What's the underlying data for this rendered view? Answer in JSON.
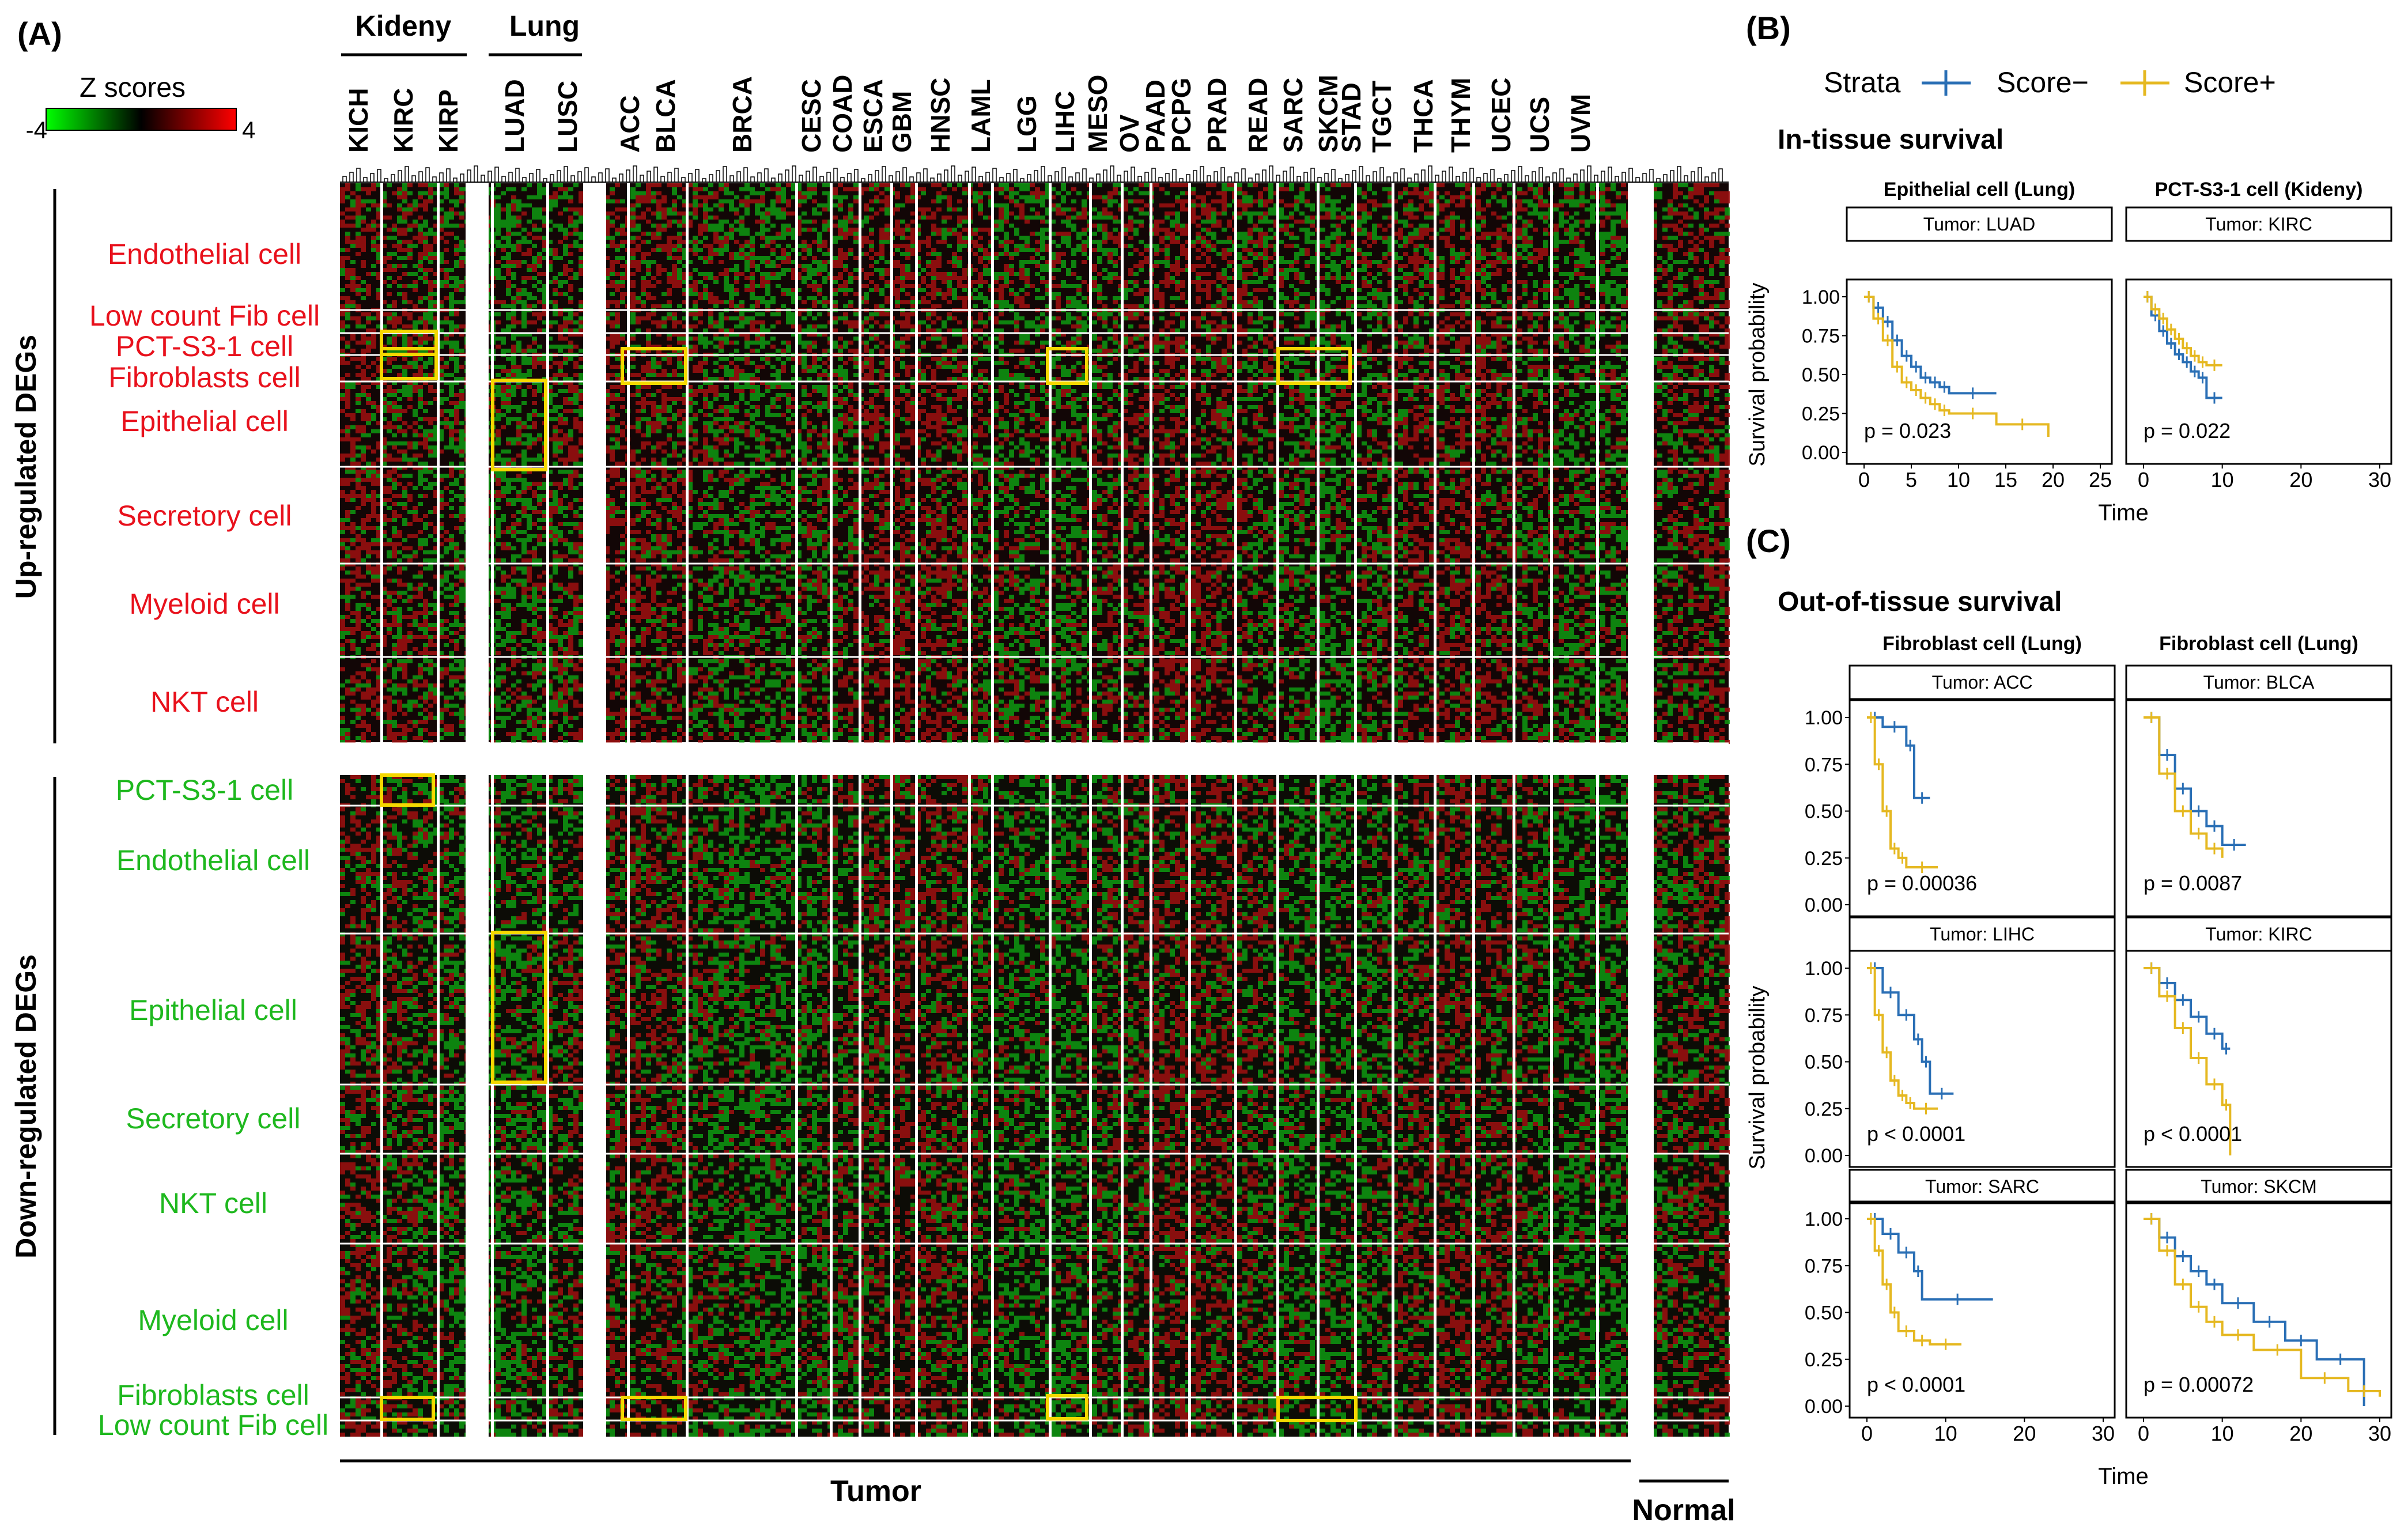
{
  "panels": {
    "A": "(A)",
    "B": "(B)",
    "C": "(C)"
  },
  "colorbar": {
    "title": "Z scores",
    "min": "-4",
    "max": "4",
    "colors": [
      "#00ff00",
      "#000000",
      "#ff0000"
    ]
  },
  "tissue_groups": {
    "kidney": "Kideny",
    "lung": "Lung"
  },
  "kidney_columns": [
    "KICH",
    "KIRC",
    "KIRP"
  ],
  "lung_columns": [
    "LUAD",
    "LUSC"
  ],
  "tumor_columns": [
    "ACC",
    "BLCA",
    "BRCA",
    "CESC",
    "COAD",
    "ESCA",
    "GBM",
    "HNSC",
    "LAML",
    "LGG",
    "LIHC",
    "MESO",
    "OV",
    "PAAD",
    "PCPG",
    "PRAD",
    "READ",
    "SARC",
    "SKCM",
    "STAD",
    "TGCT",
    "THCA",
    "THYM",
    "UCEC",
    "UCS",
    "UVM"
  ],
  "bottom_labels": {
    "tumor": "Tumor",
    "normal": "Normal"
  },
  "row_groups": {
    "up": {
      "title": "Up-regulated DEGs",
      "color": "#e8111c",
      "cells": [
        "Endothelial cell",
        "Low count Fib cell",
        "PCT-S3-1 cell",
        "Fibroblasts cell",
        "Epithelial cell",
        "Secretory cell",
        "Myeloid cell",
        "NKT cell"
      ]
    },
    "down": {
      "title": "Down-regulated DEGs",
      "color": "#1eb81e",
      "cells": [
        "PCT-S3-1 cell",
        "Endothelial cell",
        "Epithelial cell",
        "Secretory cell",
        "NKT cell",
        "Myeloid cell",
        "Fibroblasts cell",
        "Low count Fib cell"
      ]
    }
  },
  "highlight_color": "#f5d800",
  "legend": {
    "title": "Strata",
    "items": [
      {
        "label": "Score−",
        "color": "#2a6fb5"
      },
      {
        "label": "Score+",
        "color": "#e5b821"
      }
    ]
  },
  "in_tissue": {
    "title": "In-tissue survival",
    "ylabel": "Survival probability",
    "xlabel": "Time",
    "plots": [
      {
        "title": "Epithelial cell (Lung)",
        "strip": "Tumor: LUAD",
        "pval": "p = 0.023",
        "xmax": 25,
        "xticks": [
          "0",
          "5",
          "10",
          "15",
          "20",
          "25"
        ],
        "neg": [
          [
            0,
            1
          ],
          [
            1,
            0.93
          ],
          [
            2,
            0.84
          ],
          [
            3,
            0.72
          ],
          [
            4,
            0.62
          ],
          [
            5,
            0.55
          ],
          [
            6,
            0.48
          ],
          [
            7,
            0.45
          ],
          [
            8,
            0.42
          ],
          [
            9,
            0.38
          ],
          [
            14,
            0.38
          ]
        ],
        "pos": [
          [
            0,
            1
          ],
          [
            1,
            0.86
          ],
          [
            2,
            0.72
          ],
          [
            3,
            0.55
          ],
          [
            4,
            0.45
          ],
          [
            5,
            0.4
          ],
          [
            6,
            0.35
          ],
          [
            7,
            0.31
          ],
          [
            8,
            0.27
          ],
          [
            9,
            0.25
          ],
          [
            14,
            0.18
          ],
          [
            19.5,
            0.1
          ]
        ]
      },
      {
        "title": "PCT-S3-1 cell (Kideny)",
        "strip": "Tumor: KIRC",
        "pval": "p = 0.022",
        "xmax": 30,
        "xticks": [
          "0",
          "10",
          "20",
          "30"
        ],
        "neg": [
          [
            0,
            1
          ],
          [
            1,
            0.88
          ],
          [
            2,
            0.78
          ],
          [
            3,
            0.7
          ],
          [
            4,
            0.63
          ],
          [
            5,
            0.58
          ],
          [
            6,
            0.52
          ],
          [
            7,
            0.48
          ],
          [
            8,
            0.35
          ],
          [
            10,
            0.35
          ]
        ],
        "pos": [
          [
            0,
            1
          ],
          [
            1,
            0.92
          ],
          [
            2,
            0.86
          ],
          [
            3,
            0.79
          ],
          [
            4,
            0.73
          ],
          [
            5,
            0.67
          ],
          [
            6,
            0.62
          ],
          [
            7,
            0.58
          ],
          [
            8,
            0.56
          ],
          [
            10,
            0.56
          ]
        ]
      }
    ]
  },
  "out_tissue": {
    "title": "Out-of-tissue survival",
    "ylabel": "Survival probability",
    "xlabel": "Time",
    "plots": [
      {
        "title": "Fibroblast cell (Lung)",
        "strip": "Tumor: ACC",
        "pval": "p = 0.00036",
        "xmax": 30,
        "xticks": [],
        "neg": [
          [
            0,
            1
          ],
          [
            2,
            0.95
          ],
          [
            5,
            0.85
          ],
          [
            6,
            0.57
          ],
          [
            8,
            0.57
          ]
        ],
        "pos": [
          [
            0,
            1
          ],
          [
            1,
            0.75
          ],
          [
            2,
            0.5
          ],
          [
            3,
            0.3
          ],
          [
            4,
            0.25
          ],
          [
            5,
            0.2
          ],
          [
            9,
            0.2
          ]
        ]
      },
      {
        "title": "Fibroblast cell (Lung)",
        "strip": "Tumor: BLCA",
        "pval": "p = 0.0087",
        "xmax": 30,
        "xticks": [],
        "neg": [
          [
            0,
            1
          ],
          [
            2,
            0.8
          ],
          [
            4,
            0.62
          ],
          [
            6,
            0.5
          ],
          [
            8,
            0.42
          ],
          [
            10,
            0.32
          ],
          [
            13,
            0.32
          ]
        ],
        "pos": [
          [
            0,
            1
          ],
          [
            2,
            0.7
          ],
          [
            4,
            0.5
          ],
          [
            6,
            0.38
          ],
          [
            8,
            0.3
          ],
          [
            10,
            0.25
          ]
        ]
      },
      {
        "title": "",
        "strip": "Tumor: LIHC",
        "pval": "p < 0.0001",
        "xmax": 30,
        "xticks": [],
        "neg": [
          [
            0,
            1
          ],
          [
            2,
            0.87
          ],
          [
            4,
            0.75
          ],
          [
            6,
            0.62
          ],
          [
            7,
            0.5
          ],
          [
            8,
            0.33
          ],
          [
            11,
            0.33
          ]
        ],
        "pos": [
          [
            0,
            1
          ],
          [
            1,
            0.75
          ],
          [
            2,
            0.55
          ],
          [
            3,
            0.4
          ],
          [
            4,
            0.32
          ],
          [
            5,
            0.28
          ],
          [
            6,
            0.25
          ],
          [
            9,
            0.25
          ]
        ]
      },
      {
        "title": "",
        "strip": "Tumor: KIRC",
        "pval": "p < 0.0001",
        "xmax": 30,
        "xticks": [],
        "neg": [
          [
            0,
            1
          ],
          [
            2,
            0.92
          ],
          [
            4,
            0.83
          ],
          [
            6,
            0.74
          ],
          [
            8,
            0.65
          ],
          [
            10,
            0.57
          ],
          [
            11,
            0.57
          ]
        ],
        "pos": [
          [
            0,
            1
          ],
          [
            2,
            0.85
          ],
          [
            4,
            0.68
          ],
          [
            6,
            0.52
          ],
          [
            8,
            0.38
          ],
          [
            10,
            0.27
          ],
          [
            11,
            0.0
          ]
        ]
      },
      {
        "title": "",
        "strip": "Tumor: SARC",
        "pval": "p < 0.0001",
        "xmax": 30,
        "xticks": [
          "0",
          "10",
          "20",
          "30"
        ],
        "neg": [
          [
            0,
            1
          ],
          [
            2,
            0.92
          ],
          [
            4,
            0.82
          ],
          [
            6,
            0.72
          ],
          [
            7,
            0.57
          ],
          [
            16,
            0.57
          ]
        ],
        "pos": [
          [
            0,
            1
          ],
          [
            1,
            0.83
          ],
          [
            2,
            0.65
          ],
          [
            3,
            0.5
          ],
          [
            4,
            0.4
          ],
          [
            6,
            0.35
          ],
          [
            8,
            0.33
          ],
          [
            12,
            0.33
          ]
        ]
      },
      {
        "title": "",
        "strip": "Tumor: SKCM",
        "pval": "p = 0.00072",
        "xmax": 30,
        "xticks": [
          "0",
          "10",
          "20",
          "30"
        ],
        "neg": [
          [
            0,
            1
          ],
          [
            2,
            0.9
          ],
          [
            4,
            0.8
          ],
          [
            6,
            0.72
          ],
          [
            8,
            0.65
          ],
          [
            10,
            0.55
          ],
          [
            14,
            0.45
          ],
          [
            18,
            0.35
          ],
          [
            22,
            0.25
          ],
          [
            28,
            0.0
          ]
        ],
        "pos": [
          [
            0,
            1
          ],
          [
            2,
            0.83
          ],
          [
            4,
            0.65
          ],
          [
            6,
            0.53
          ],
          [
            8,
            0.45
          ],
          [
            10,
            0.38
          ],
          [
            14,
            0.3
          ],
          [
            20,
            0.15
          ],
          [
            26,
            0.08
          ],
          [
            30,
            0.05
          ]
        ]
      }
    ]
  },
  "km_yticks": [
    "1.00",
    "0.75",
    "0.50",
    "0.25",
    "0.00"
  ]
}
